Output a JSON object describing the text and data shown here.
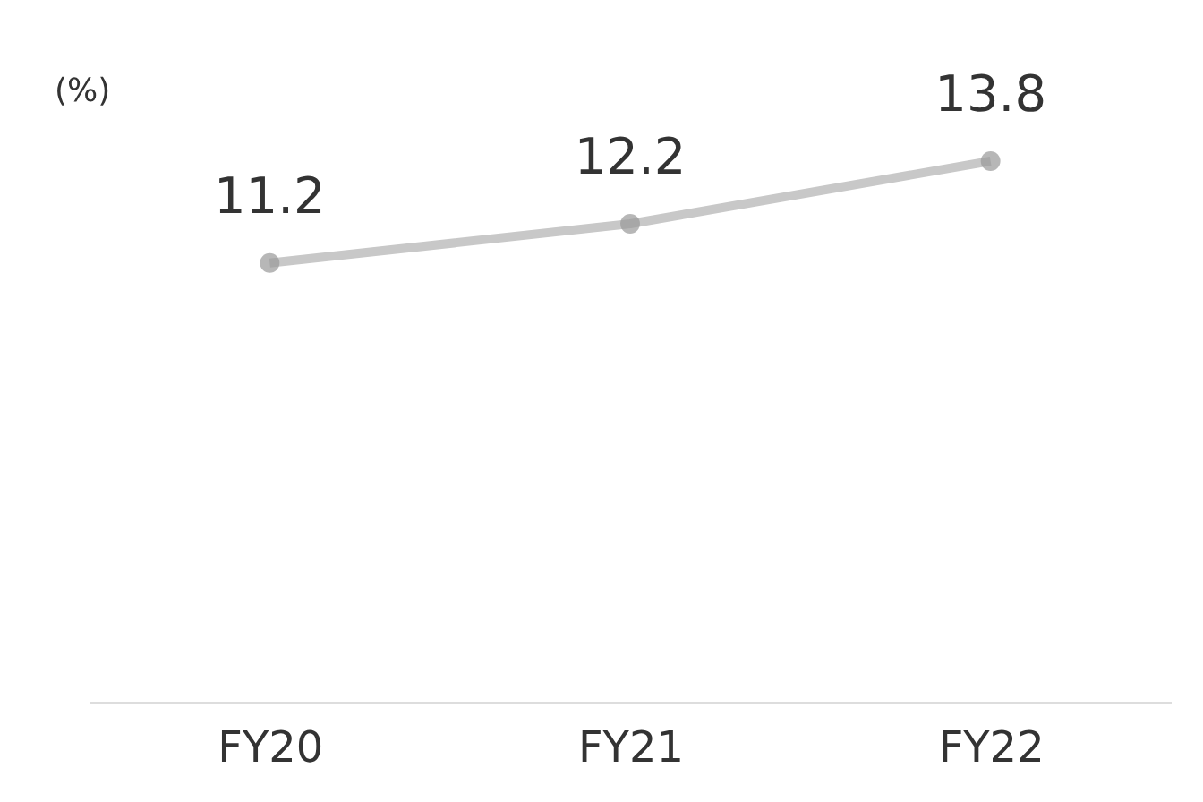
{
  "chart_data": {
    "type": "line",
    "ylabel": "(%)",
    "categories": [
      "FY20",
      "FY21",
      "FY22"
    ],
    "series": [
      {
        "color": "#c8c8c8",
        "values": [
          11.2,
          12.2,
          13.8
        ]
      }
    ],
    "data_labels": true,
    "marker": "circle",
    "grid": false
  }
}
